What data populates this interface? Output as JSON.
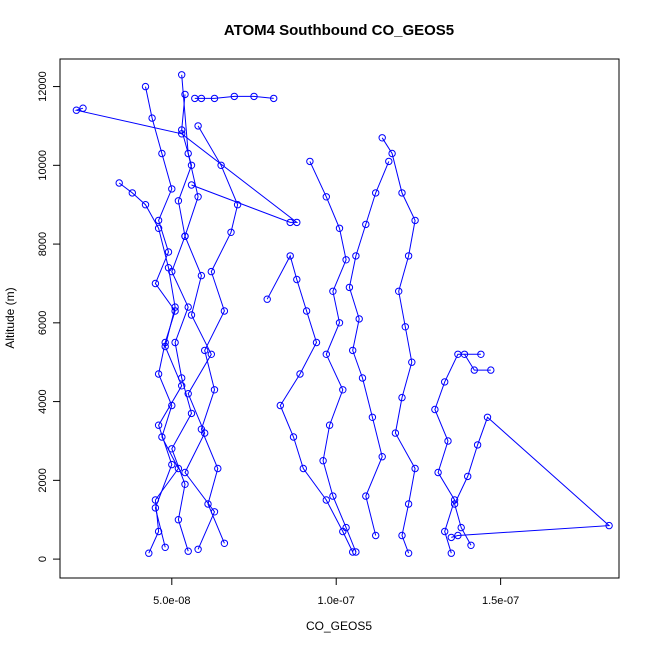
{
  "chart_data": {
    "type": "line",
    "title": "ATOM4 Southbound CO_GEOS5",
    "xlabel": "CO_GEOS5",
    "ylabel": "Altitude (m)",
    "xlim": [
      1.6e-08,
      1.86e-07
    ],
    "ylim": [
      -480,
      12700
    ],
    "x_ticks": [
      5e-08,
      1e-07,
      1.5e-07
    ],
    "x_tick_labels": [
      "5.0e-08",
      "1.0e-07",
      "1.5e-07"
    ],
    "y_ticks": [
      0,
      2000,
      4000,
      6000,
      8000,
      10000,
      12000
    ],
    "y_tick_labels": [
      "0",
      "2000",
      "4000",
      "6000",
      "8000",
      "10000",
      "12000"
    ],
    "grid": false,
    "line_color": "#0000ff",
    "marker": "open-circle",
    "series": [
      {
        "x": [
          4.3e-08,
          4.6e-08,
          4.5e-08,
          5.2e-08,
          4.7e-08,
          5e-08,
          4.6e-08,
          4.8e-08,
          5.1e-08,
          4.5e-08,
          4.9e-08,
          4.6e-08,
          5e-08,
          4.7e-08,
          4.4e-08,
          4.2e-08
        ],
        "y": [
          150,
          700,
          1500,
          2300,
          3100,
          3900,
          4700,
          5500,
          6300,
          7000,
          7800,
          8600,
          9400,
          10300,
          11200,
          12000
        ]
      },
      {
        "x": [
          5.5e-08,
          5.2e-08,
          5.4e-08,
          5e-08,
          5.6e-08,
          5.3e-08,
          5.1e-08,
          5.5e-08,
          5e-08,
          5.4e-08,
          5.2e-08,
          5.6e-08,
          5.3e-08,
          5.4e-08
        ],
        "y": [
          200,
          1000,
          1900,
          2800,
          3700,
          4600,
          5500,
          6400,
          7300,
          8200,
          9100,
          10000,
          10900,
          11800
        ]
      },
      {
        "x": [
          5.8e-08,
          6.3e-08,
          5.4e-08,
          6e-08,
          5.5e-08,
          6.2e-08,
          5.6e-08,
          5.9e-08,
          5.4e-08,
          5.8e-08,
          5.5e-08,
          5.3e-08
        ],
        "y": [
          250,
          1200,
          2200,
          3200,
          4200,
          5200,
          6200,
          7200,
          8200,
          9200,
          10300,
          12300
        ]
      },
      {
        "x": [
          4.8e-08,
          4.5e-08,
          5e-08,
          4.6e-08,
          5.3e-08,
          4.8e-08,
          5.1e-08,
          4.9e-08,
          4.6e-08,
          4.2e-08,
          3.8e-08,
          3.4e-08
        ],
        "y": [
          300,
          1300,
          2400,
          3400,
          4400,
          5400,
          6400,
          7400,
          8400,
          9000,
          9300,
          9550
        ]
      },
      {
        "x": [
          6.6e-08,
          6.1e-08,
          6.4e-08,
          5.9e-08,
          6.3e-08,
          6e-08,
          6.6e-08,
          6.2e-08,
          6.8e-08,
          7e-08,
          6.5e-08,
          5.8e-08
        ],
        "y": [
          400,
          1400,
          2300,
          3300,
          4300,
          5300,
          6300,
          7300,
          8300,
          9000,
          10000,
          11000
        ]
      },
      {
        "x": [
          1.05e-07,
          1.02e-07,
          9.7e-08,
          9e-08,
          8.7e-08,
          8.3e-08,
          8.9e-08,
          9.4e-08,
          9.1e-08,
          8.8e-08,
          8.6e-08,
          7.9e-08
        ],
        "y": [
          180,
          700,
          1500,
          2300,
          3100,
          3900,
          4700,
          5500,
          6300,
          7100,
          7700,
          6600
        ]
      },
      {
        "x": [
          1.06e-07,
          1.03e-07,
          9.9e-08,
          9.6e-08,
          9.8e-08,
          1.02e-07,
          9.7e-08,
          1.01e-07,
          9.9e-08,
          1.03e-07,
          1.01e-07,
          9.7e-08,
          9.2e-08
        ],
        "y": [
          180,
          800,
          1600,
          2500,
          3400,
          4300,
          5200,
          6000,
          6800,
          7600,
          8400,
          9200,
          10100
        ]
      },
      {
        "x": [
          1.12e-07,
          1.09e-07,
          1.14e-07,
          1.11e-07,
          1.08e-07,
          1.05e-07,
          1.07e-07,
          1.04e-07,
          1.06e-07,
          1.09e-07,
          1.12e-07,
          1.16e-07
        ],
        "y": [
          600,
          1600,
          2600,
          3600,
          4600,
          5300,
          6100,
          6900,
          7700,
          8500,
          9300,
          10100
        ]
      },
      {
        "x": [
          1.22e-07,
          1.2e-07,
          1.22e-07,
          1.24e-07,
          1.18e-07,
          1.2e-07,
          1.23e-07,
          1.21e-07,
          1.19e-07,
          1.22e-07,
          1.24e-07,
          1.2e-07,
          1.17e-07,
          1.14e-07
        ],
        "y": [
          150,
          600,
          1400,
          2300,
          3200,
          4100,
          5000,
          5900,
          6800,
          7700,
          8600,
          9300,
          10300,
          10700
        ]
      },
      {
        "x": [
          1.35e-07,
          1.33e-07,
          1.36e-07,
          1.31e-07,
          1.34e-07,
          1.3e-07,
          1.33e-07,
          1.37e-07,
          1.44e-07,
          1.39e-07,
          1.42e-07,
          1.47e-07
        ],
        "y": [
          150,
          700,
          1500,
          2200,
          3000,
          3800,
          4500,
          5200,
          5200,
          5200,
          4800,
          4800
        ]
      },
      {
        "x": [
          1.41e-07,
          1.38e-07,
          1.36e-07,
          1.4e-07,
          1.43e-07,
          1.46e-07,
          1.83e-07,
          1.37e-07,
          1.35e-07
        ],
        "y": [
          350,
          800,
          1400,
          2100,
          2900,
          3600,
          850,
          600,
          550
        ]
      },
      {
        "x": [
          5.7e-08,
          5.9e-08,
          6.3e-08,
          6.9e-08,
          7.5e-08,
          8.1e-08
        ],
        "y": [
          11700,
          11700,
          11700,
          11750,
          11750,
          11700
        ]
      },
      {
        "x": [
          2.3e-08,
          2.1e-08,
          5.3e-08,
          8.8e-08,
          8.6e-08,
          5.6e-08
        ],
        "y": [
          11450,
          11400,
          10800,
          8550,
          8550,
          9500
        ]
      }
    ]
  }
}
